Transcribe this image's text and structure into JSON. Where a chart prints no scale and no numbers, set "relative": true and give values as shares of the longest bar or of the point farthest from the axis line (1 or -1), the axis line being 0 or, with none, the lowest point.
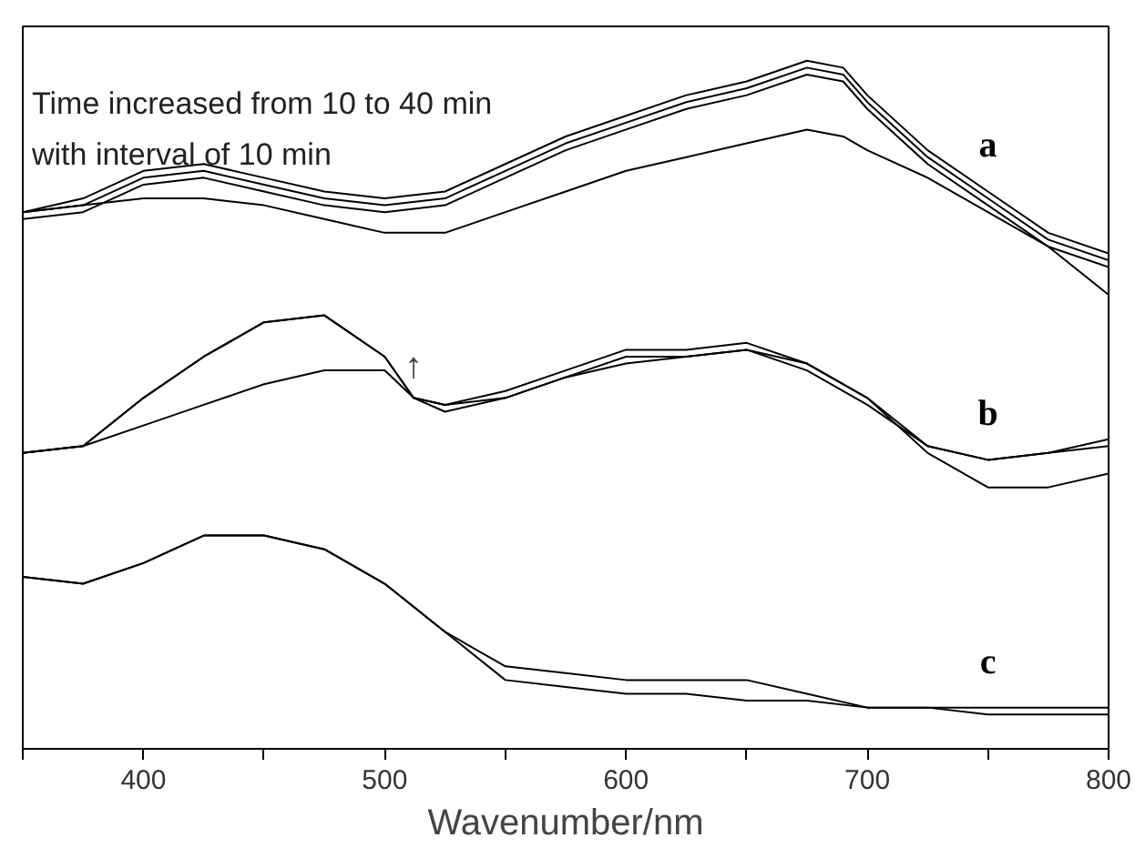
{
  "chart_data": {
    "type": "line",
    "relative": true,
    "xlabel": "Wavenumber/nm",
    "xlim": [
      350,
      800
    ],
    "xticks": [
      {
        "value": 350,
        "label": null
      },
      400,
      {
        "value": 450,
        "label": null
      },
      500,
      {
        "value": 550,
        "label": null
      },
      600,
      {
        "value": 650,
        "label": null
      },
      700,
      {
        "value": 750,
        "label": null
      },
      800
    ],
    "grid": false,
    "marker": "none",
    "line_style": "solid",
    "series": [
      {
        "name": "a",
        "color": "#000000",
        "x": [
          350,
          375,
          400,
          425,
          450,
          475,
          500,
          525,
          550,
          575,
          600,
          625,
          650,
          675,
          690,
          700,
          725,
          750,
          775,
          800
        ],
        "values": [
          0.78,
          0.8,
          0.84,
          0.85,
          0.83,
          0.81,
          0.8,
          0.81,
          0.85,
          0.89,
          0.92,
          0.95,
          0.97,
          1.0,
          0.99,
          0.95,
          0.87,
          0.81,
          0.75,
          0.72
        ]
      },
      {
        "color": "#000000",
        "x": [
          350,
          375,
          400,
          425,
          450,
          475,
          500,
          525,
          550,
          575,
          600,
          625,
          650,
          675,
          690,
          700,
          725,
          750,
          775,
          800
        ],
        "values": [
          0.78,
          0.79,
          0.83,
          0.84,
          0.82,
          0.8,
          0.79,
          0.8,
          0.84,
          0.88,
          0.91,
          0.94,
          0.96,
          0.99,
          0.98,
          0.94,
          0.86,
          0.8,
          0.74,
          0.71
        ]
      },
      {
        "color": "#000000",
        "x": [
          350,
          375,
          400,
          425,
          450,
          475,
          500,
          525,
          550,
          575,
          600,
          625,
          650,
          675,
          690,
          700,
          725,
          750,
          775,
          800
        ],
        "values": [
          0.77,
          0.78,
          0.82,
          0.83,
          0.81,
          0.79,
          0.78,
          0.79,
          0.83,
          0.87,
          0.9,
          0.93,
          0.95,
          0.98,
          0.97,
          0.93,
          0.85,
          0.79,
          0.73,
          0.7
        ]
      },
      {
        "color": "#000000",
        "x": [
          350,
          375,
          400,
          425,
          450,
          475,
          500,
          525,
          550,
          575,
          600,
          625,
          650,
          675,
          690,
          700,
          725,
          750,
          775,
          800
        ],
        "values": [
          0.78,
          0.79,
          0.8,
          0.8,
          0.79,
          0.77,
          0.75,
          0.75,
          0.78,
          0.81,
          0.84,
          0.86,
          0.88,
          0.9,
          0.89,
          0.87,
          0.83,
          0.78,
          0.73,
          0.66
        ]
      },
      {
        "name": "b",
        "color": "#000000",
        "x": [
          350,
          375,
          400,
          425,
          450,
          475,
          500,
          512,
          525,
          550,
          575,
          600,
          625,
          650,
          675,
          700,
          725,
          750,
          775,
          800
        ],
        "values": [
          0.43,
          0.44,
          0.51,
          0.57,
          0.62,
          0.63,
          0.57,
          0.51,
          0.5,
          0.52,
          0.55,
          0.58,
          0.58,
          0.59,
          0.56,
          0.51,
          0.44,
          0.42,
          0.43,
          0.45
        ]
      },
      {
        "color": "#000000",
        "x": [
          350,
          375,
          400,
          425,
          450,
          475,
          500,
          512,
          525,
          550,
          575,
          600,
          625,
          650,
          675,
          700,
          725,
          750,
          775,
          800
        ],
        "values": [
          0.43,
          0.44,
          0.51,
          0.57,
          0.62,
          0.63,
          0.57,
          0.51,
          0.49,
          0.51,
          0.54,
          0.57,
          0.57,
          0.58,
          0.55,
          0.5,
          0.44,
          0.42,
          0.43,
          0.44
        ]
      },
      {
        "color": "#000000",
        "x": [
          350,
          375,
          400,
          425,
          450,
          475,
          500,
          512,
          525,
          550,
          575,
          600,
          625,
          650,
          675,
          700,
          725,
          750,
          775,
          800
        ],
        "values": [
          0.43,
          0.44,
          0.47,
          0.5,
          0.53,
          0.55,
          0.55,
          0.51,
          0.5,
          0.51,
          0.54,
          0.56,
          0.57,
          0.58,
          0.56,
          0.51,
          0.43,
          0.38,
          0.38,
          0.4
        ]
      },
      {
        "name": "c",
        "color": "#000000",
        "x": [
          350,
          375,
          400,
          425,
          450,
          475,
          500,
          525,
          550,
          575,
          600,
          625,
          650,
          675,
          700,
          725,
          750,
          775,
          800
        ],
        "values": [
          0.25,
          0.24,
          0.27,
          0.31,
          0.31,
          0.29,
          0.24,
          0.17,
          0.12,
          0.11,
          0.1,
          0.1,
          0.1,
          0.08,
          0.06,
          0.06,
          0.06,
          0.06,
          0.06
        ]
      },
      {
        "color": "#000000",
        "x": [
          350,
          375,
          400,
          425,
          450,
          475,
          500,
          525,
          550,
          575,
          600,
          625,
          650,
          675,
          700,
          725,
          750,
          775,
          800
        ],
        "values": [
          0.25,
          0.24,
          0.27,
          0.31,
          0.31,
          0.29,
          0.24,
          0.17,
          0.1,
          0.09,
          0.08,
          0.08,
          0.07,
          0.07,
          0.06,
          0.06,
          0.05,
          0.05,
          0.05
        ]
      }
    ],
    "annotations": [
      "Time increased from 10 to 40 min",
      "with interval of 10 min",
      {
        "text": "↑",
        "x": 512,
        "y": 0.51
      }
    ]
  }
}
